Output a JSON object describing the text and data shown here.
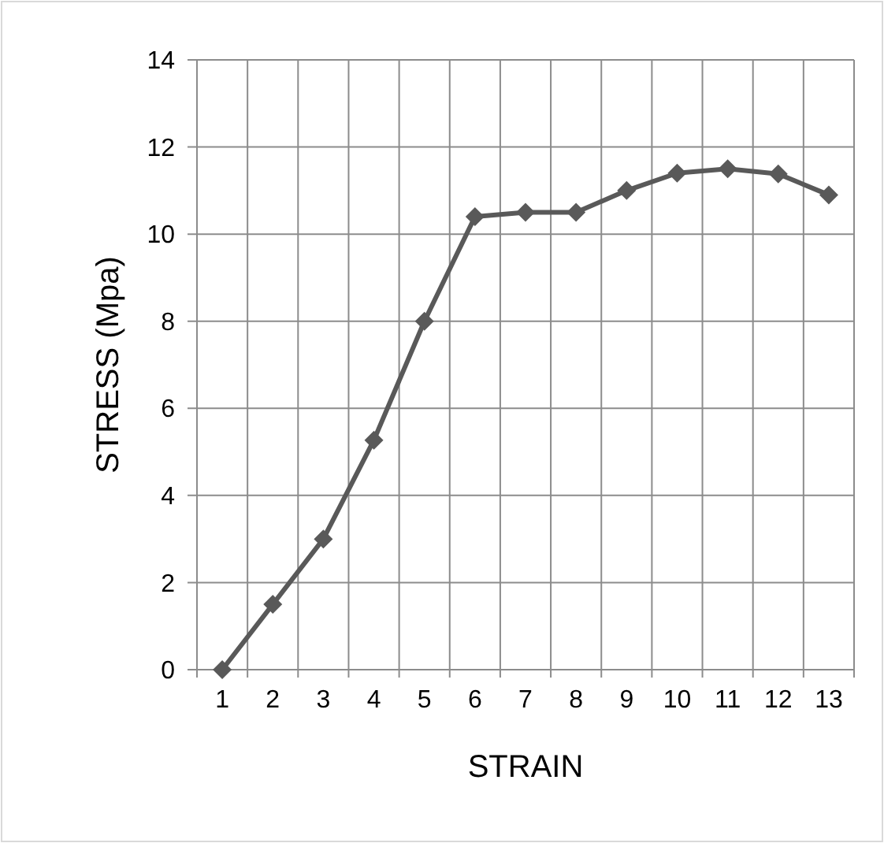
{
  "chart_data": {
    "type": "line",
    "xlabel": "STRAIN",
    "ylabel": "STRESS (Mpa)",
    "categories": [
      "1",
      "2",
      "3",
      "4",
      "5",
      "6",
      "7",
      "8",
      "9",
      "10",
      "11",
      "12",
      "13"
    ],
    "series": [
      {
        "color": "#595959",
        "values": [
          0,
          1.5,
          3,
          5.27,
          8,
          10.4,
          10.5,
          10.5,
          11,
          11.4,
          11.5,
          11.38,
          10.9
        ]
      }
    ],
    "ylim": [
      0,
      14
    ],
    "yticks": [
      0,
      2,
      4,
      6,
      8,
      10,
      12,
      14
    ],
    "grid": true,
    "marker": "diamond",
    "line_style": "solid"
  }
}
